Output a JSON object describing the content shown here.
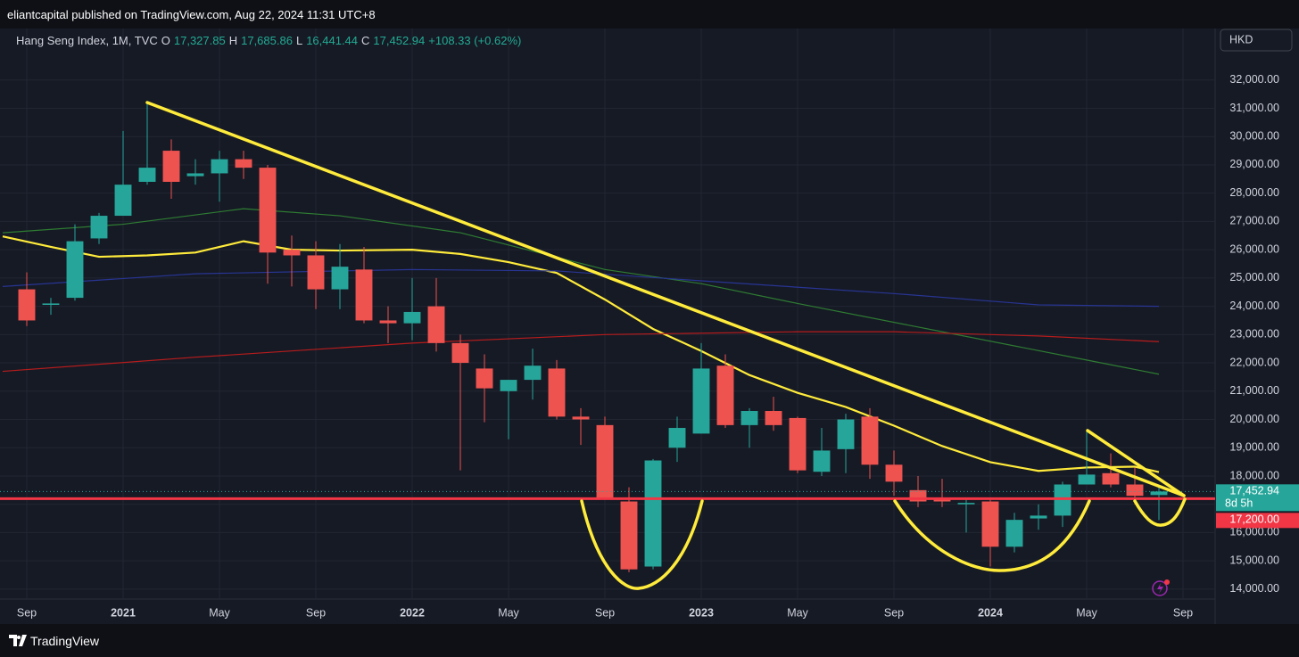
{
  "header": {
    "publisher": "eliantcapital published on TradingView.com, Aug 22, 2024 11:31 UTC+8",
    "symbol": "Hang Seng Index, 1M, TVC",
    "open_label": "O",
    "open": "17,327.85",
    "high_label": "H",
    "high": "17,685.86",
    "low_label": "L",
    "low": "16,441.44",
    "close_label": "C",
    "close": "17,452.94",
    "change": "+108.33 (+0.62%)",
    "currency": "HKD"
  },
  "footer": {
    "brand": "TradingView"
  },
  "chart_data": {
    "type": "candlestick",
    "x": [
      "2020-09",
      "2020-10",
      "2020-11",
      "2020-12",
      "2021-01",
      "2021-02",
      "2021-03",
      "2021-04",
      "2021-05",
      "2021-06",
      "2021-07",
      "2021-08",
      "2021-09",
      "2021-10",
      "2021-11",
      "2021-12",
      "2022-01",
      "2022-02",
      "2022-03",
      "2022-04",
      "2022-05",
      "2022-06",
      "2022-07",
      "2022-08",
      "2022-09",
      "2022-10",
      "2022-11",
      "2022-12",
      "2023-01",
      "2023-02",
      "2023-03",
      "2023-04",
      "2023-05",
      "2023-06",
      "2023-07",
      "2023-08",
      "2023-09",
      "2023-10",
      "2023-11",
      "2023-12",
      "2024-01",
      "2024-02",
      "2024-03",
      "2024-04",
      "2024-05",
      "2024-06",
      "2024-07",
      "2024-08"
    ],
    "open": [
      24600,
      24050,
      24300,
      26400,
      27200,
      28400,
      29500,
      28600,
      28700,
      29200,
      28900,
      26000,
      25800,
      24600,
      25300,
      23500,
      23400,
      24000,
      22700,
      21800,
      21000,
      21400,
      21800,
      20100,
      19800,
      17100,
      14800,
      19000,
      19500,
      21900,
      19800,
      20300,
      20050,
      18150,
      18950,
      20100,
      18400,
      17500,
      17200,
      17000,
      17100,
      15500,
      16500,
      16600,
      17700,
      18100,
      17700,
      17327.85
    ],
    "high": [
      25200,
      24300,
      26900,
      27300,
      30200,
      31200,
      29900,
      29200,
      29500,
      29500,
      29000,
      26500,
      26300,
      26200,
      26100,
      24000,
      25000,
      25000,
      23000,
      22300,
      21300,
      22500,
      22100,
      20400,
      20100,
      17600,
      18600,
      20100,
      22700,
      22300,
      20400,
      20800,
      20100,
      19700,
      20200,
      20400,
      18900,
      18000,
      17900,
      17200,
      17200,
      16700,
      17000,
      17800,
      19650,
      18800,
      18300,
      17685.86
    ],
    "low": [
      23300,
      23700,
      24200,
      26200,
      27200,
      28300,
      27800,
      28300,
      27700,
      28500,
      24800,
      24700,
      23900,
      23900,
      23400,
      22700,
      22800,
      22400,
      18200,
      19900,
      19300,
      20700,
      20000,
      19100,
      17200,
      14600,
      14700,
      18500,
      19500,
      19700,
      19000,
      19600,
      18100,
      18000,
      18100,
      17900,
      17300,
      16900,
      16900,
      16000,
      14800,
      15300,
      16100,
      16200,
      17700,
      17600,
      17000,
      16441.44
    ],
    "close": [
      23500,
      24100,
      26300,
      27200,
      28300,
      28900,
      28400,
      28700,
      29200,
      28900,
      25900,
      25800,
      24600,
      25400,
      23500,
      23400,
      23800,
      22700,
      22000,
      21100,
      21400,
      21900,
      20100,
      20000,
      17200,
      14700,
      18550,
      19700,
      21800,
      19800,
      20300,
      19800,
      18200,
      18900,
      20000,
      18400,
      17800,
      17100,
      17100,
      17050,
      15500,
      16450,
      16600,
      17700,
      18050,
      17700,
      17300,
      17452.94
    ],
    "up_color": "#26a69a",
    "down_color": "#ef5350",
    "moving_averages": [
      {
        "color": "#ffeb3b",
        "x": [
          "2020-08",
          "2020-10",
          "2020-12",
          "2021-02",
          "2021-04",
          "2021-06",
          "2021-08",
          "2021-10",
          "2022-01",
          "2022-03",
          "2022-05",
          "2022-07",
          "2022-09",
          "2022-11",
          "2023-01",
          "2023-03",
          "2023-05",
          "2023-07",
          "2023-09",
          "2023-11",
          "2024-01",
          "2024-03",
          "2024-05",
          "2024-07",
          "2024-08"
        ],
        "values": [
          26470,
          26100,
          25750,
          25800,
          25900,
          26300,
          26000,
          25970,
          26000,
          25850,
          25560,
          25180,
          24240,
          23200,
          22420,
          21570,
          20940,
          20440,
          19780,
          19060,
          18490,
          18180,
          18300,
          18330,
          18140
        ]
      },
      {
        "color": "#2e7d32",
        "x": [
          "2020-08",
          "2021-01",
          "2021-06",
          "2021-10",
          "2022-03",
          "2022-09",
          "2023-01",
          "2023-05",
          "2023-11",
          "2024-05",
          "2024-08"
        ],
        "values": [
          26600,
          26900,
          27450,
          27200,
          26600,
          25300,
          24800,
          24100,
          23100,
          22100,
          21600
        ]
      },
      {
        "color": "#283593",
        "x": [
          "2020-08",
          "2021-04",
          "2022-01",
          "2022-07",
          "2023-01",
          "2023-09",
          "2024-03",
          "2024-08"
        ],
        "values": [
          24700,
          25150,
          25300,
          25250,
          24900,
          24450,
          24050,
          24000
        ]
      },
      {
        "color": "#b71c1c",
        "x": [
          "2020-08",
          "2021-04",
          "2022-01",
          "2022-09",
          "2023-05",
          "2023-09",
          "2024-03",
          "2024-08"
        ],
        "values": [
          21700,
          22200,
          22700,
          23000,
          23100,
          23100,
          22950,
          22750
        ]
      }
    ],
    "xlim": [
      "2020-08",
      "2024-10"
    ],
    "xticks": [
      {
        "value": "2020-09",
        "label": "Sep"
      },
      {
        "value": "2021-01",
        "label": "2021"
      },
      {
        "value": "2021-05",
        "label": "May"
      },
      {
        "value": "2021-09",
        "label": "Sep"
      },
      {
        "value": "2022-01",
        "label": "2022"
      },
      {
        "value": "2022-05",
        "label": "May"
      },
      {
        "value": "2022-09",
        "label": "Sep"
      },
      {
        "value": "2023-01",
        "label": "2023"
      },
      {
        "value": "2023-05",
        "label": "May"
      },
      {
        "value": "2023-09",
        "label": "Sep"
      },
      {
        "value": "2024-01",
        "label": "2024"
      },
      {
        "value": "2024-05",
        "label": "May"
      },
      {
        "value": "2024-09",
        "label": "Sep"
      }
    ],
    "ylim": [
      13650,
      33820
    ],
    "yticks": [
      {
        "value": 14000,
        "label": "14,000.00"
      },
      {
        "value": 15000,
        "label": "15,000.00"
      },
      {
        "value": 16000,
        "label": "16,000.00"
      },
      {
        "value": 17000,
        "label": "17,000.00"
      },
      {
        "value": 18000,
        "label": "18,000.00"
      },
      {
        "value": 19000,
        "label": "19,000.00"
      },
      {
        "value": 20000,
        "label": "20,000.00"
      },
      {
        "value": 21000,
        "label": "21,000.00"
      },
      {
        "value": 22000,
        "label": "22,000.00"
      },
      {
        "value": 23000,
        "label": "23,000.00"
      },
      {
        "value": 24000,
        "label": "24,000.00"
      },
      {
        "value": 25000,
        "label": "25,000.00"
      },
      {
        "value": 26000,
        "label": "26,000.00"
      },
      {
        "value": 27000,
        "label": "27,000.00"
      },
      {
        "value": 28000,
        "label": "28,000.00"
      },
      {
        "value": 29000,
        "label": "29,000.00"
      },
      {
        "value": 30000,
        "label": "30,000.00"
      },
      {
        "value": 31000,
        "label": "31,000.00"
      },
      {
        "value": 32000,
        "label": "32,000.00"
      }
    ],
    "grid": true,
    "last_price": {
      "value": 17452.94,
      "label": "17,452.94",
      "countdown": "8d 5h",
      "color": "#26a69a"
    },
    "hline": {
      "value": 17200,
      "label": "17,200.00",
      "color": "#f23645"
    }
  }
}
